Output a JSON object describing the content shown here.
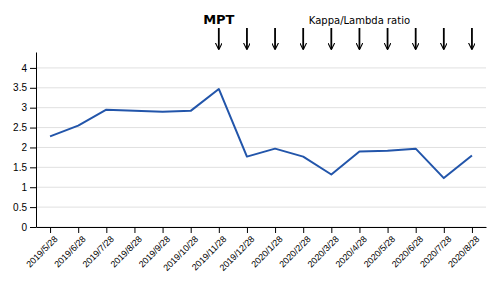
{
  "chart_data": {
    "type": "line",
    "categories": [
      "2019/5/28",
      "2019/6/28",
      "2019/7/28",
      "2019/8/28",
      "2019/9/28",
      "2019/10/28",
      "2019/11/28",
      "2019/12/28",
      "2020/1/28",
      "2020/2/28",
      "2020/3/28",
      "2020/4/28",
      "2020/5/28",
      "2020/6/28",
      "2020/7/28",
      "2020/8/28"
    ],
    "values": [
      2.28,
      2.55,
      2.95,
      2.92,
      2.9,
      2.92,
      3.47,
      1.77,
      1.97,
      1.77,
      1.32,
      1.9,
      1.92,
      1.97,
      1.23,
      1.8
    ],
    "color": "#2255aa",
    "ylim": [
      0,
      4.4
    ],
    "yticks": [
      0,
      0.5,
      1,
      1.5,
      2,
      2.5,
      3,
      3.5,
      4
    ],
    "grid": true,
    "annotations": [
      {
        "text": "MPT",
        "arrows": [
          "2019/11/28"
        ]
      },
      {
        "text": "Kappa/Lambda ratio",
        "arrows": [
          "2019/12/28",
          "2020/1/28",
          "2020/2/28",
          "2020/3/28",
          "2020/4/28",
          "2020/5/28",
          "2020/6/28",
          "2020/7/28",
          "2020/8/28"
        ]
      }
    ]
  }
}
